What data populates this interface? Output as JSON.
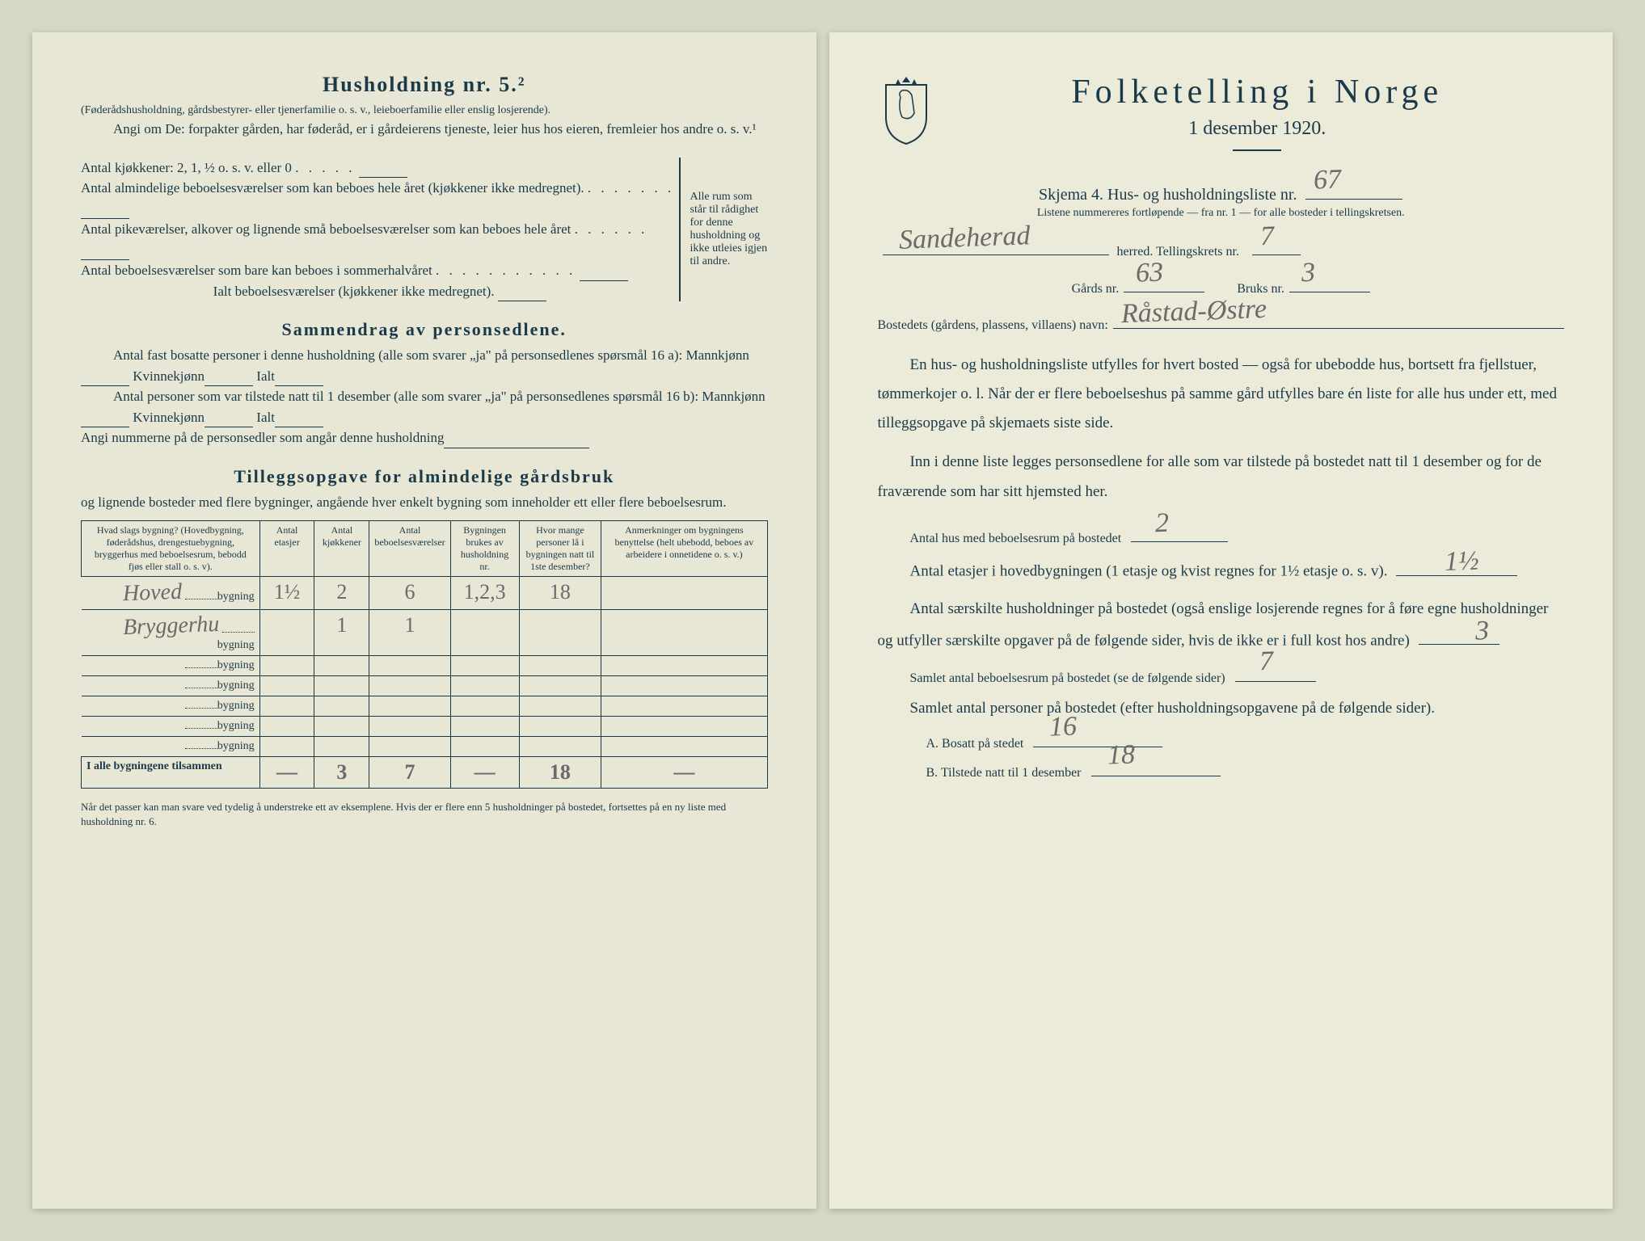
{
  "left": {
    "heading": "Husholdning nr. 5.²",
    "intro1": "(Føderådshusholdning, gårdsbestyrer- eller tjenerfamilie o. s. v., leieboerfamilie eller enslig losjerende).",
    "intro2": "Angi om De: forpakter gården, har føderåd, er i gårdeierens tjeneste, leier hus hos eieren, fremleier hos andre o. s. v.¹",
    "kitchen_line": "Antal kjøkkener: 2, 1, ½ o. s. v. eller 0",
    "room_lines": [
      "Antal almindelige beboelsesværelser som kan beboes hele året (kjøkkener ikke medregnet).",
      "Antal pikeværelser, alkover og lignende små beboelsesværelser som kan beboes hele året",
      "Antal beboelsesværelser som bare kan beboes i sommerhalvåret"
    ],
    "room_total": "Ialt beboelsesværelser (kjøkkener ikke medregnet).",
    "brace_text": "Alle rum som står til rådighet for denne husholdning og ikke utleies igjen til andre.",
    "summary_heading": "Sammendrag av personsedlene.",
    "summary_l1": "Antal fast bosatte personer i denne husholdning (alle som svarer „ja\" på personsedlenes spørsmål 16 a): Mannkjønn",
    "summary_kvinne": "Kvinnekjønn",
    "summary_ialt": "Ialt",
    "summary_l2": "Antal personer som var tilstede natt til 1 desember (alle som svarer „ja\" på personsedlenes spørsmål 16 b): Mannkjønn",
    "summary_l3": "Angi nummerne på de personsedler som angår denne husholdning",
    "tillegg_heading": "Tilleggsopgave for almindelige gårdsbruk",
    "tillegg_sub": "og lignende bosteder med flere bygninger, angående hver enkelt bygning som inneholder ett eller flere beboelsesrum.",
    "table": {
      "headers": [
        "Hvad slags bygning?\n(Hovedbygning, føderådshus, drengestuebygning, bryggerhus med beboelsesrum, bebodd fjøs eller stall o. s. v).",
        "Antal etasjer",
        "Antal kjøkkener",
        "Antal beboelsesværelser",
        "Bygningen brukes av husholdning nr.",
        "Hvor mange personer lå i bygningen natt til 1ste desember?",
        "Anmerkninger om bygningens benyttelse (helt ubebodd, beboes av arbeidere i onnetidene o. s. v.)"
      ],
      "row_suffix": "bygning",
      "rows": [
        {
          "name_hw": "Hoved",
          "etasjer": "1½",
          "kjokkener": "2",
          "beboelse": "6",
          "hushold": "1,2,3",
          "personer": "18",
          "anm": ""
        },
        {
          "name_hw": "Bryggerhu",
          "etasjer": "",
          "kjokkener": "1",
          "beboelse": "1",
          "hushold": "",
          "personer": "",
          "anm": ""
        },
        {
          "name_hw": "",
          "etasjer": "",
          "kjokkener": "",
          "beboelse": "",
          "hushold": "",
          "personer": "",
          "anm": ""
        },
        {
          "name_hw": "",
          "etasjer": "",
          "kjokkener": "",
          "beboelse": "",
          "hushold": "",
          "personer": "",
          "anm": ""
        },
        {
          "name_hw": "",
          "etasjer": "",
          "kjokkener": "",
          "beboelse": "",
          "hushold": "",
          "personer": "",
          "anm": ""
        },
        {
          "name_hw": "",
          "etasjer": "",
          "kjokkener": "",
          "beboelse": "",
          "hushold": "",
          "personer": "",
          "anm": ""
        },
        {
          "name_hw": "",
          "etasjer": "",
          "kjokkener": "",
          "beboelse": "",
          "hushold": "",
          "personer": "",
          "anm": ""
        }
      ],
      "totals_label": "I alle bygningene tilsammen",
      "totals": {
        "etasjer": "—",
        "kjokkener": "3",
        "beboelse": "7",
        "hushold": "—",
        "personer": "18",
        "anm": "—"
      }
    },
    "footnote": "Når det passer kan man svare ved tydelig å understreke ett av eksemplene.\nHvis der er flere enn 5 husholdninger på bostedet, fortsettes på en ny liste med husholdning nr. 6."
  },
  "right": {
    "title": "Folketelling i Norge",
    "date": "1 desember 1920.",
    "skjema_line": "Skjema 4.  Hus- og husholdningsliste nr.",
    "list_nr_hw": "67",
    "listene": "Listene nummereres fortløpende — fra nr. 1 — for alle bosteder i tellingskretsen.",
    "herred_hw": "Sandeherad",
    "herred_label": "herred.   Tellingskrets nr.",
    "krets_hw": "7",
    "gards_label": "Gårds nr.",
    "gards_hw": "63",
    "bruks_label": "Bruks nr.",
    "bruks_hw": "3",
    "bosted_label": "Bostedets (gårdens, plassens, villaens) navn:",
    "bosted_hw": "Råstad-Østre",
    "para1": "En hus- og husholdningsliste utfylles for hvert bosted — også for ubebodde hus, bortsett fra fjellstuer, tømmerkojer o. l.  Når der er flere beboelseshus på samme gård utfylles bare én liste for alle hus under ett, med tilleggsopgave på skjemaets siste side.",
    "para2": "Inn i denne liste legges personsedlene for alle som var tilstede på bostedet natt til 1 desember og for de fraværende som har sitt hjemsted her.",
    "q1_label": "Antal hus med beboelsesrum på bostedet",
    "q1_hw": "2",
    "q2_label": "Antal etasjer i hovedbygningen (1 etasje og kvist regnes for 1½ etasje o. s. v).",
    "q2_hw": "1½",
    "q3_label": "Antal særskilte husholdninger på bostedet (også enslige losjerende regnes for å føre egne husholdninger og utfyller særskilte opgaver på de følgende sider, hvis de ikke er i full kost hos andre)",
    "q3_hw": "3",
    "q4_label": "Samlet antal beboelsesrum på bostedet (se de følgende sider)",
    "q4_hw": "7",
    "q5_label": "Samlet antal personer på bostedet (efter husholdningsopgavene på de følgende sider).",
    "qA_label": "A.  Bosatt på stedet",
    "qA_hw": "16",
    "qB_label": "B.  Tilstede natt til 1 desember",
    "qB_hw": "18"
  },
  "colors": {
    "paper": "#e8e6d4",
    "paper_right": "#ecead9",
    "ink": "#1a3a4a",
    "pencil": "#6a6a6a",
    "bg": "#d5d8c5"
  }
}
